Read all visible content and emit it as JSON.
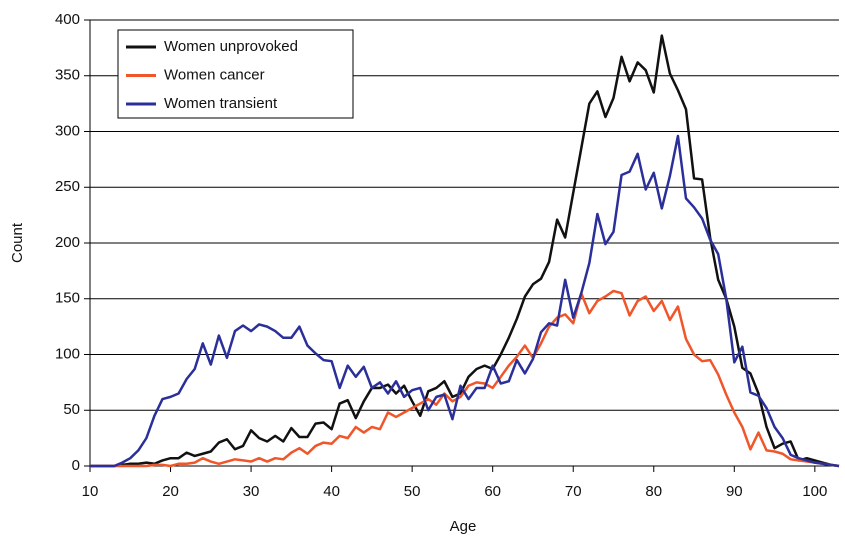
{
  "chart_data": {
    "type": "line",
    "xlabel": "Age",
    "ylabel": "Count",
    "x": [
      10,
      11,
      12,
      13,
      14,
      15,
      16,
      17,
      18,
      19,
      20,
      21,
      22,
      23,
      24,
      25,
      26,
      27,
      28,
      29,
      30,
      31,
      32,
      33,
      34,
      35,
      36,
      37,
      38,
      39,
      40,
      41,
      42,
      43,
      44,
      45,
      46,
      47,
      48,
      49,
      50,
      51,
      52,
      53,
      54,
      55,
      56,
      57,
      58,
      59,
      60,
      61,
      62,
      63,
      64,
      65,
      66,
      67,
      68,
      69,
      70,
      71,
      72,
      73,
      74,
      75,
      76,
      77,
      78,
      79,
      80,
      81,
      82,
      83,
      84,
      85,
      86,
      87,
      88,
      89,
      90,
      91,
      92,
      93,
      94,
      95,
      96,
      97,
      98,
      99,
      100,
      101,
      102,
      103
    ],
    "series": [
      {
        "name": "Women unprovoked",
        "color": "#111111",
        "values": [
          0,
          0,
          0,
          0,
          1,
          2,
          2,
          3,
          2,
          5,
          7,
          7,
          12,
          9,
          11,
          13,
          21,
          24,
          15,
          18,
          32,
          25,
          22,
          27,
          22,
          34,
          26,
          26,
          38,
          39,
          33,
          56,
          59,
          43,
          58,
          70,
          70,
          73,
          65,
          72,
          58,
          45,
          67,
          70,
          76,
          62,
          65,
          80,
          87,
          90,
          87,
          100,
          115,
          132,
          152,
          163,
          168,
          183,
          221,
          205,
          245,
          285,
          325,
          336,
          313,
          330,
          367,
          345,
          362,
          355,
          335,
          386,
          352,
          337,
          320,
          258,
          257,
          205,
          167,
          150,
          125,
          88,
          83,
          65,
          35,
          16,
          20,
          22,
          5,
          7,
          5,
          3,
          1,
          0
        ]
      },
      {
        "name": "Women cancer",
        "color": "#f0562a",
        "values": [
          0,
          0,
          0,
          0,
          0,
          0,
          0,
          0,
          1,
          1,
          0,
          2,
          2,
          3,
          7,
          4,
          2,
          4,
          6,
          5,
          4,
          7,
          4,
          7,
          6,
          12,
          16,
          11,
          18,
          21,
          20,
          27,
          25,
          35,
          30,
          35,
          33,
          48,
          44,
          48,
          52,
          56,
          60,
          55,
          65,
          58,
          62,
          72,
          75,
          74,
          70,
          80,
          90,
          98,
          108,
          97,
          110,
          125,
          133,
          136,
          128,
          155,
          137,
          148,
          152,
          157,
          155,
          135,
          148,
          152,
          139,
          148,
          131,
          143,
          114,
          100,
          94,
          95,
          82,
          64,
          48,
          35,
          15,
          30,
          14,
          13,
          11,
          6,
          5,
          4,
          3,
          2,
          1,
          0
        ]
      },
      {
        "name": "Women transient",
        "color": "#2b2f9a",
        "values": [
          0,
          0,
          0,
          0,
          3,
          7,
          14,
          25,
          45,
          60,
          62,
          65,
          78,
          87,
          110,
          91,
          117,
          97,
          121,
          126,
          121,
          127,
          125,
          121,
          115,
          115,
          125,
          108,
          101,
          95,
          94,
          70,
          90,
          80,
          89,
          70,
          75,
          65,
          76,
          62,
          68,
          70,
          50,
          62,
          64,
          42,
          72,
          60,
          70,
          70,
          90,
          74,
          76,
          95,
          83,
          96,
          120,
          128,
          126,
          167,
          133,
          155,
          182,
          226,
          199,
          210,
          261,
          264,
          280,
          248,
          263,
          231,
          260,
          296,
          240,
          232,
          222,
          203,
          190,
          150,
          93,
          107,
          66,
          63,
          52,
          35,
          25,
          10,
          7,
          5,
          3,
          2,
          1,
          0
        ]
      }
    ],
    "xlim": [
      10,
      103
    ],
    "xticks": [
      10,
      20,
      30,
      40,
      50,
      60,
      70,
      80,
      90,
      100
    ],
    "ylim": [
      0,
      400
    ],
    "yticks": [
      0,
      50,
      100,
      150,
      200,
      250,
      300,
      350,
      400
    ],
    "grid": true,
    "legend": "upper left"
  }
}
